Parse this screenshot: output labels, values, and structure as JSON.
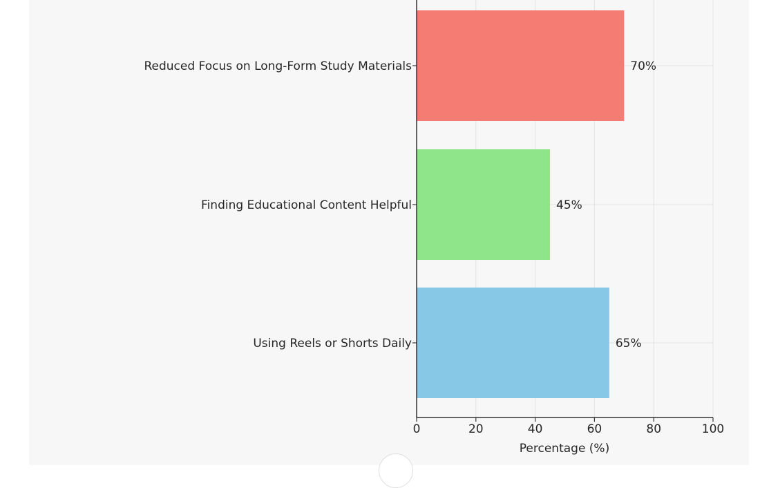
{
  "chart_data": {
    "type": "bar",
    "orientation": "horizontal",
    "categories": [
      "Reduced Focus on Long-Form Study Materials",
      "Finding Educational Content Helpful",
      "Using Reels or Shorts Daily"
    ],
    "values": [
      70,
      45,
      65
    ],
    "value_labels": [
      "70%",
      "45%",
      "65%"
    ],
    "colors": [
      "#f47c72",
      "#8ee58a",
      "#86c8e6"
    ],
    "xlabel": "Percentage (%)",
    "xlim": [
      0,
      100
    ],
    "xticks": [
      "0",
      "20",
      "40",
      "60",
      "80",
      "100"
    ],
    "grid": true
  }
}
